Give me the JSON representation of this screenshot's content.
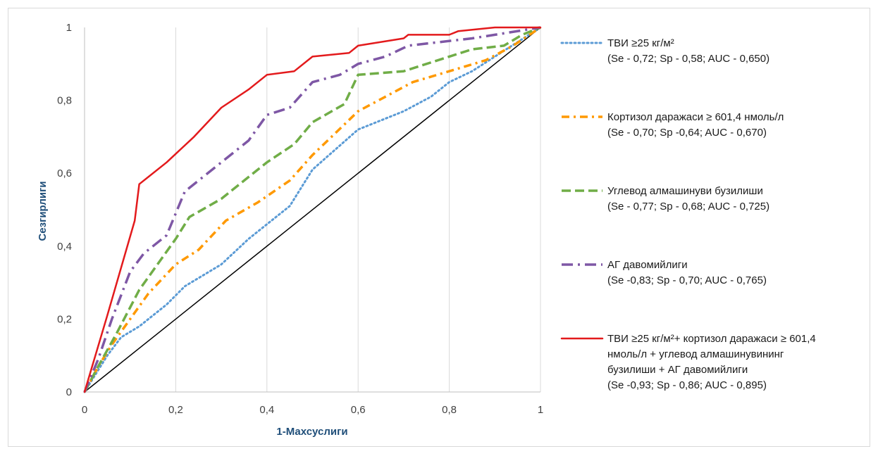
{
  "chart_data": {
    "type": "line",
    "title": "",
    "xlabel": "1-Махсуслиги",
    "ylabel": "Сезгирлиги",
    "xlim": [
      0,
      1
    ],
    "ylim": [
      0,
      1
    ],
    "x_ticks": [
      "0",
      "0,2",
      "0,4",
      "0,6",
      "0,8",
      "1"
    ],
    "y_ticks": [
      "0",
      "0,2",
      "0,4",
      "0,6",
      "0,8",
      "1"
    ],
    "grid": "vertical",
    "legend_position": "right",
    "reference_line": {
      "points": [
        [
          0,
          0
        ],
        [
          1,
          1
        ]
      ],
      "color": "#000000"
    },
    "series": [
      {
        "name": "ТВИ  ≥25 кг/м²",
        "stats": "(Se - 0,72; Sp - 0,58; AUC - 0,650)",
        "color": "#5b9bd5",
        "dash": "dot",
        "points": [
          [
            0,
            0
          ],
          [
            0.05,
            0.1
          ],
          [
            0.08,
            0.15
          ],
          [
            0.12,
            0.18
          ],
          [
            0.18,
            0.24
          ],
          [
            0.22,
            0.29
          ],
          [
            0.3,
            0.35
          ],
          [
            0.36,
            0.42
          ],
          [
            0.4,
            0.46
          ],
          [
            0.45,
            0.51
          ],
          [
            0.47,
            0.55
          ],
          [
            0.5,
            0.61
          ],
          [
            0.6,
            0.72
          ],
          [
            0.62,
            0.73
          ],
          [
            0.7,
            0.77
          ],
          [
            0.76,
            0.81
          ],
          [
            0.8,
            0.85
          ],
          [
            0.85,
            0.88
          ],
          [
            0.9,
            0.92
          ],
          [
            1,
            1
          ]
        ]
      },
      {
        "name": "Кортизол даражаси ≥ 601,4 нмоль/л",
        "stats": "(Se - 0,70; Sp -0,64; AUC - 0,670)",
        "color": "#ff9900",
        "dash": "dashdot",
        "points": [
          [
            0,
            0
          ],
          [
            0.03,
            0.07
          ],
          [
            0.06,
            0.13
          ],
          [
            0.1,
            0.2
          ],
          [
            0.14,
            0.27
          ],
          [
            0.2,
            0.35
          ],
          [
            0.25,
            0.39
          ],
          [
            0.31,
            0.47
          ],
          [
            0.38,
            0.52
          ],
          [
            0.45,
            0.58
          ],
          [
            0.5,
            0.65
          ],
          [
            0.55,
            0.71
          ],
          [
            0.6,
            0.77
          ],
          [
            0.66,
            0.81
          ],
          [
            0.72,
            0.85
          ],
          [
            0.8,
            0.88
          ],
          [
            0.88,
            0.91
          ],
          [
            0.94,
            0.95
          ],
          [
            1,
            1
          ]
        ]
      },
      {
        "name": "Углевод алмашинуви бузилиши",
        "stats": "(Se - 0,77; Sp - 0,68; AUC - 0,725)",
        "color": "#70ad47",
        "dash": "dash",
        "points": [
          [
            0,
            0
          ],
          [
            0.03,
            0.07
          ],
          [
            0.07,
            0.16
          ],
          [
            0.12,
            0.28
          ],
          [
            0.2,
            0.42
          ],
          [
            0.23,
            0.48
          ],
          [
            0.3,
            0.53
          ],
          [
            0.34,
            0.57
          ],
          [
            0.4,
            0.63
          ],
          [
            0.46,
            0.68
          ],
          [
            0.5,
            0.74
          ],
          [
            0.57,
            0.79
          ],
          [
            0.6,
            0.87
          ],
          [
            0.7,
            0.88
          ],
          [
            0.8,
            0.92
          ],
          [
            0.85,
            0.94
          ],
          [
            0.92,
            0.95
          ],
          [
            0.96,
            0.98
          ],
          [
            1,
            1
          ]
        ]
      },
      {
        "name": "АГ давомийлиги",
        "stats": "(Se -0,83; Sp - 0,70; AUC - 0,765)",
        "color": "#7e57a5",
        "dash": "longdashdot",
        "points": [
          [
            0,
            0
          ],
          [
            0.03,
            0.09
          ],
          [
            0.06,
            0.2
          ],
          [
            0.1,
            0.33
          ],
          [
            0.13,
            0.38
          ],
          [
            0.18,
            0.43
          ],
          [
            0.22,
            0.55
          ],
          [
            0.3,
            0.63
          ],
          [
            0.36,
            0.69
          ],
          [
            0.4,
            0.76
          ],
          [
            0.45,
            0.78
          ],
          [
            0.5,
            0.85
          ],
          [
            0.56,
            0.87
          ],
          [
            0.6,
            0.9
          ],
          [
            0.66,
            0.92
          ],
          [
            0.71,
            0.95
          ],
          [
            0.78,
            0.96
          ],
          [
            0.85,
            0.97
          ],
          [
            0.9,
            0.98
          ],
          [
            1,
            1
          ]
        ]
      },
      {
        "name": "ТВИ ≥25 кг/м²+ кортизол даражаси ≥ 601,4 нмоль/л + углевод алмашинувининг бузилиши + АГ давомийлиги",
        "legend_lines": [
          "ТВИ ≥25 кг/м²+ кортизол даражаси ≥ 601,4",
          "нмоль/л + углевод алмашинувининг",
          "бузилиши + АГ давомийлиги"
        ],
        "stats": "(Se -0,93; Sp - 0,86; AUC - 0,895)",
        "color": "#e31a1c",
        "dash": "solid",
        "points": [
          [
            0,
            0
          ],
          [
            0.05,
            0.21
          ],
          [
            0.11,
            0.47
          ],
          [
            0.12,
            0.57
          ],
          [
            0.18,
            0.63
          ],
          [
            0.24,
            0.7
          ],
          [
            0.3,
            0.78
          ],
          [
            0.36,
            0.83
          ],
          [
            0.4,
            0.87
          ],
          [
            0.46,
            0.88
          ],
          [
            0.5,
            0.92
          ],
          [
            0.58,
            0.93
          ],
          [
            0.6,
            0.95
          ],
          [
            0.7,
            0.97
          ],
          [
            0.71,
            0.98
          ],
          [
            0.8,
            0.98
          ],
          [
            0.82,
            0.99
          ],
          [
            0.9,
            1
          ],
          [
            1,
            1
          ]
        ]
      }
    ]
  }
}
